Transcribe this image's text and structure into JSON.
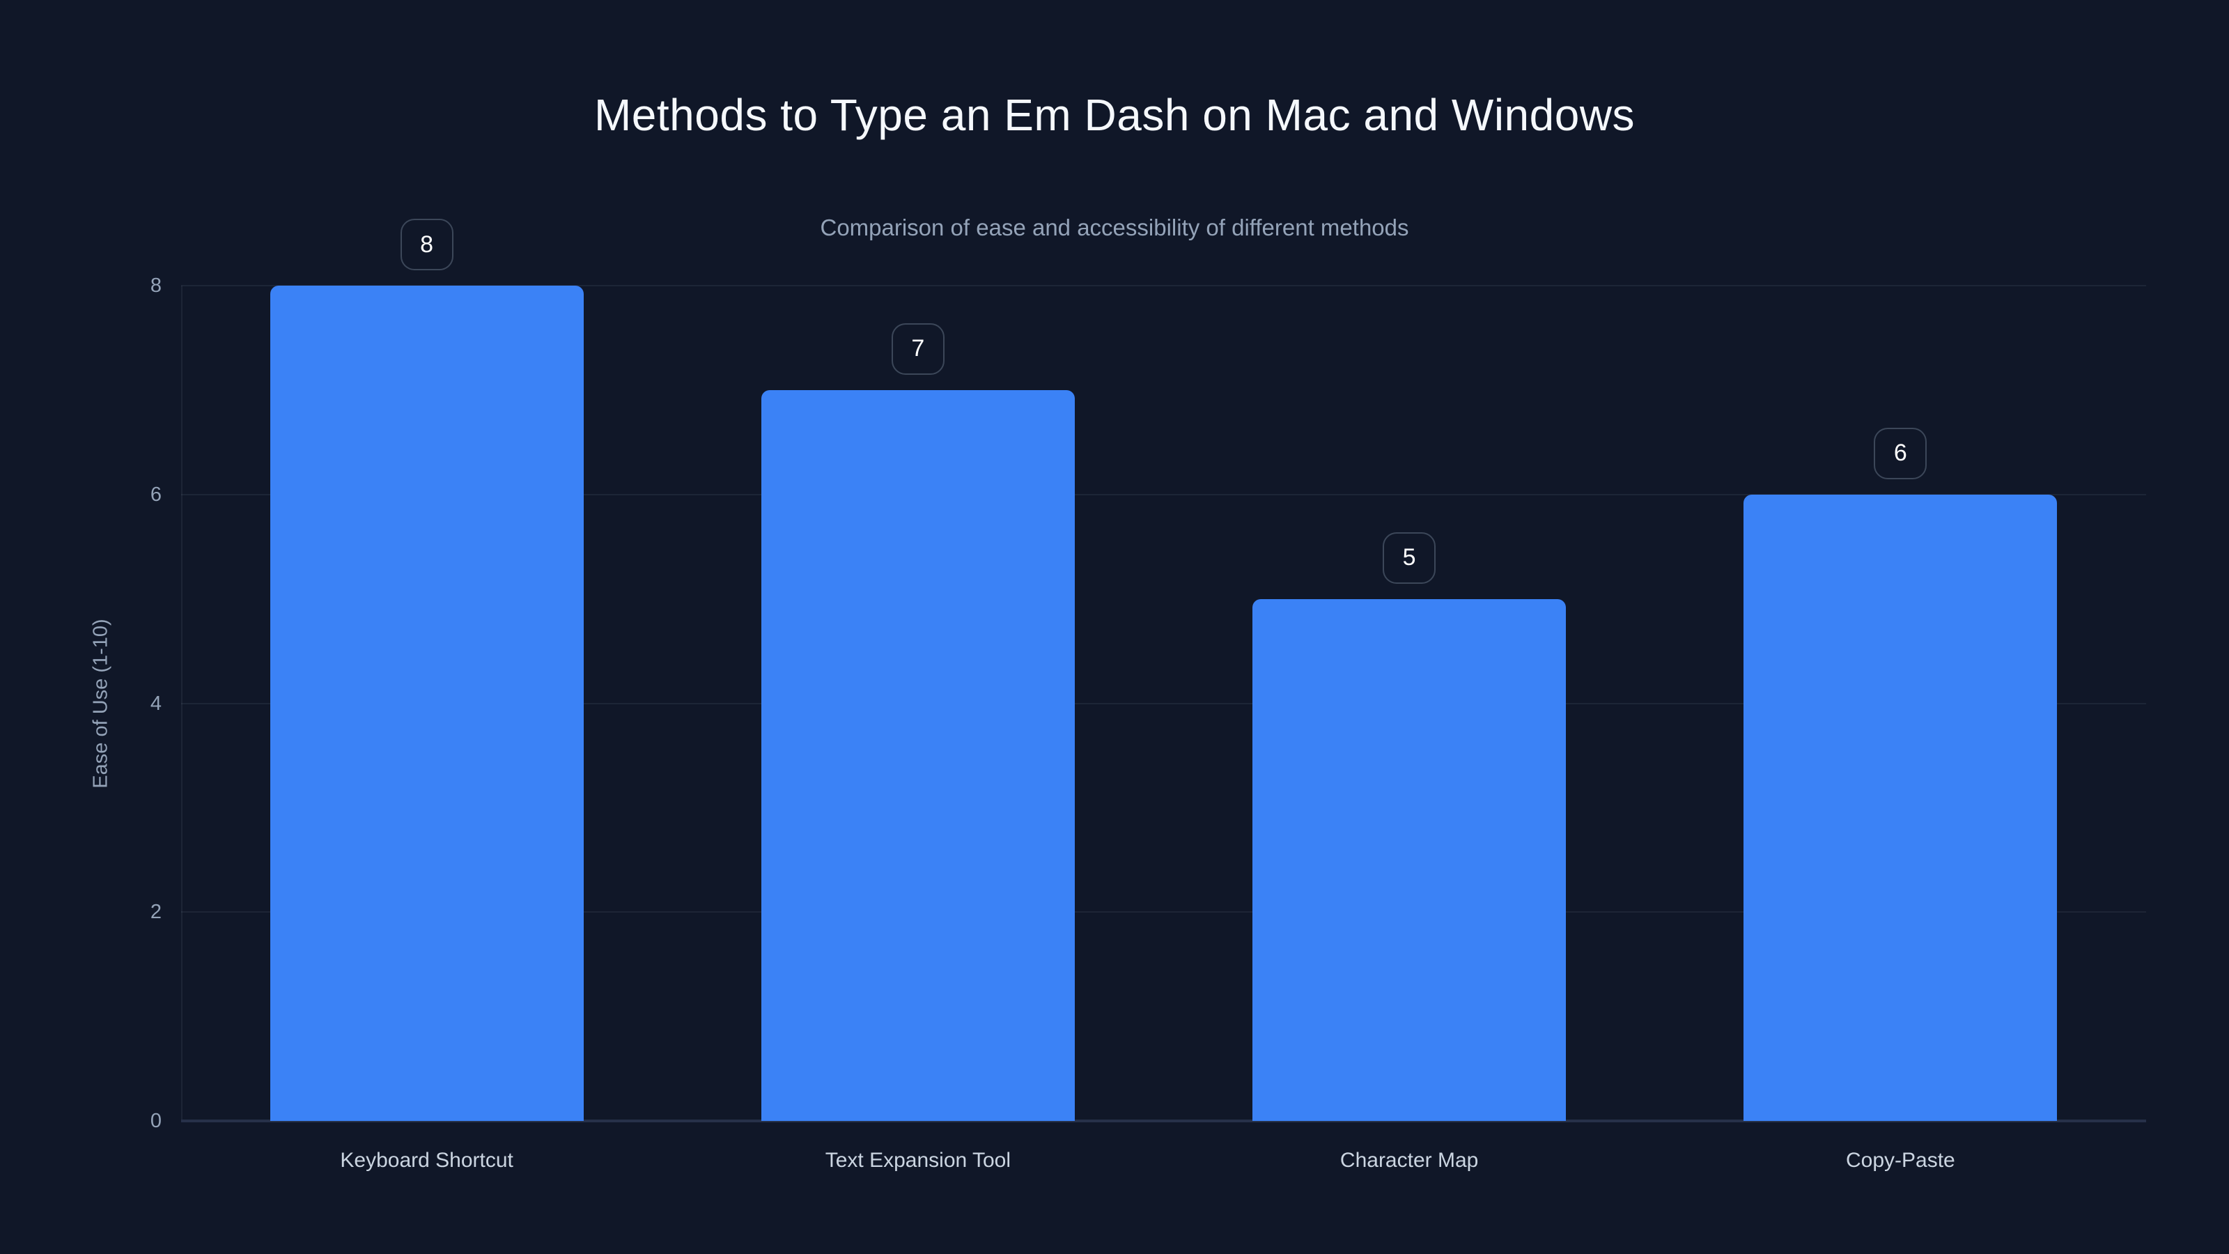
{
  "chart_data": {
    "type": "bar",
    "title": "Methods to Type an Em Dash on Mac and Windows",
    "subtitle": "Comparison of ease and accessibility of different methods",
    "categories": [
      "Keyboard Shortcut",
      "Text Expansion Tool",
      "Character Map",
      "Copy-Paste"
    ],
    "values": [
      8,
      7,
      5,
      6
    ],
    "value_labels": [
      "8",
      "7",
      "5",
      "6"
    ],
    "xlabel": "",
    "ylabel": "Ease of Use (1-10)",
    "ylim": [
      0,
      8
    ],
    "yticks": [
      0,
      2,
      4,
      6,
      8
    ],
    "grid": "horizontal-only",
    "legend": "none",
    "colors": {
      "background": "#101728",
      "bar": "#3b82f6",
      "title_text": "#f5f8fc",
      "subtitle_text": "#94a3b8",
      "tick_text": "#94a3b8",
      "category_text": "#cbd5e1",
      "badge_border": "#3c4759",
      "badge_text": "#ffffff",
      "gridline": "rgba(148,163,184,0.10)",
      "axis_line": "#273149"
    }
  }
}
